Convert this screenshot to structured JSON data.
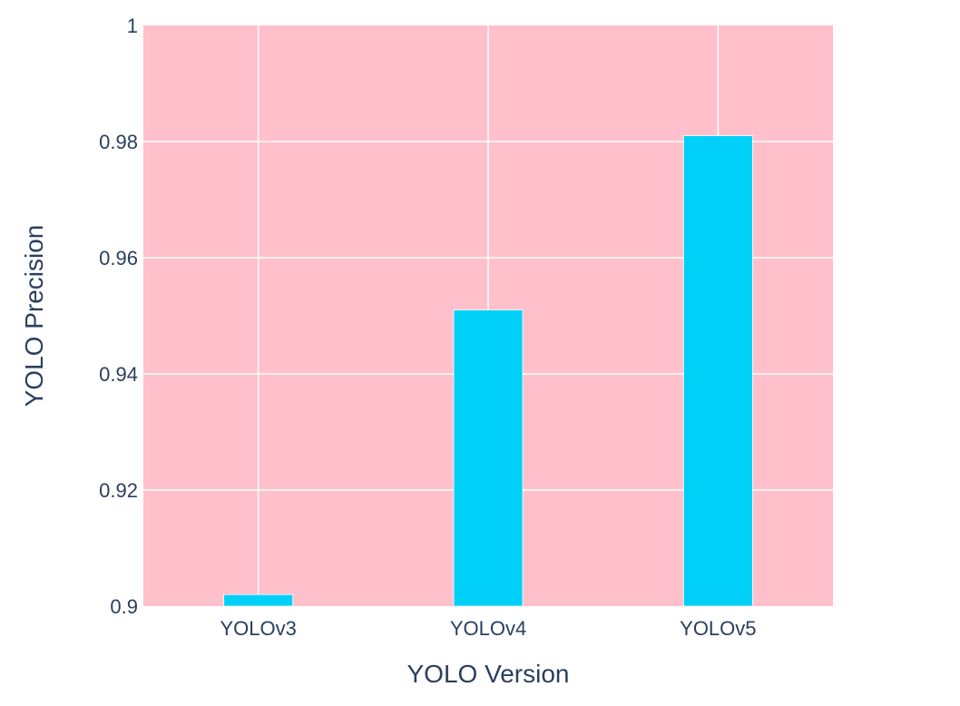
{
  "chart_data": {
    "type": "bar",
    "categories": [
      "YOLOv3",
      "YOLOv4",
      "YOLOv5"
    ],
    "values": [
      0.902,
      0.951,
      0.981
    ],
    "xlabel": "YOLO Version",
    "ylabel": "YOLO Precision",
    "ylim": [
      0.9,
      1
    ],
    "yticks": [
      "0.9",
      "0.92",
      "0.94",
      "0.96",
      "0.98",
      "1"
    ],
    "grid": true,
    "legend": "none",
    "colors": {
      "plot_background": "#ffc0cb",
      "bar": "#00d0f7",
      "bar_outline": "#ffffff",
      "grid": "#ffffff",
      "text": "#2a3f5f"
    }
  }
}
